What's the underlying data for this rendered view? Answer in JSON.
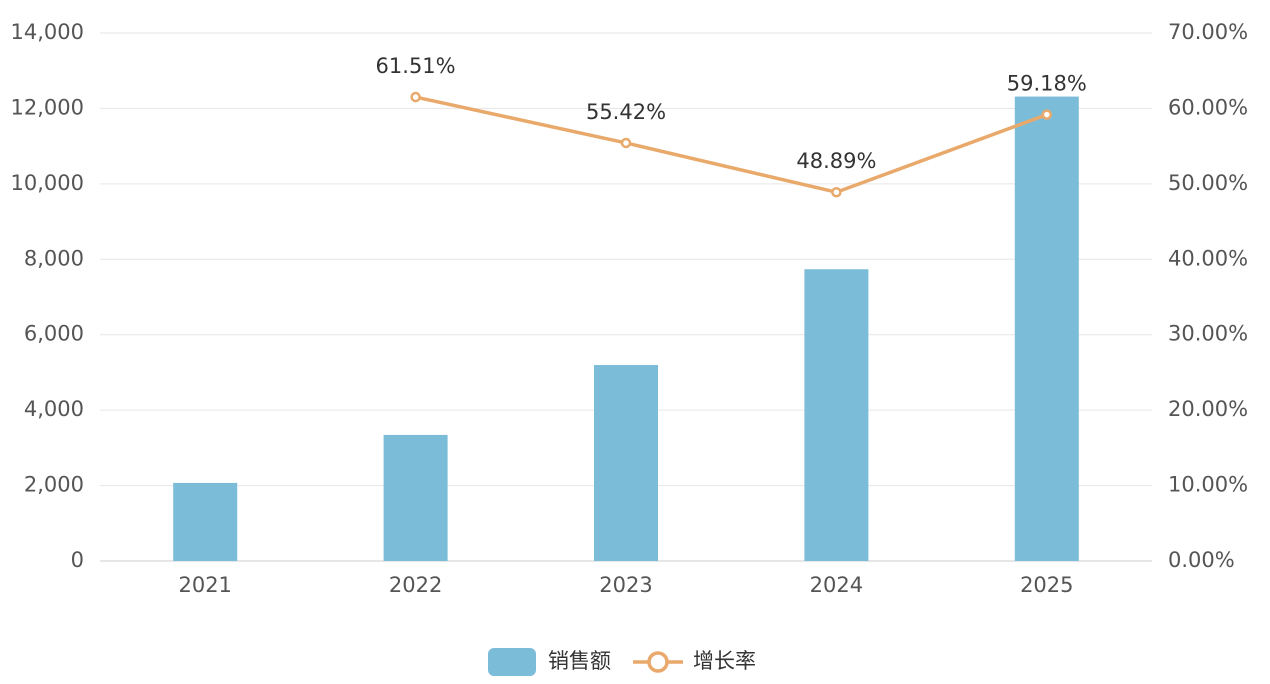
{
  "chart_data": {
    "type": "bar",
    "categories": [
      "2021",
      "2022",
      "2023",
      "2024",
      "2025"
    ],
    "series": [
      {
        "name": "销售额",
        "type": "bar",
        "color": "#7bbcd9",
        "values": [
          2070,
          3343,
          5196,
          7736,
          12314
        ]
      },
      {
        "name": "增长率",
        "type": "line",
        "axis": "y2",
        "color": "#e8a96b",
        "values": [
          null,
          61.51,
          55.42,
          48.89,
          59.18
        ],
        "value_labels": [
          null,
          "61.51%",
          "55.42%",
          "48.89%",
          "59.18%"
        ]
      }
    ],
    "ylim": [
      0,
      14000
    ],
    "yticks": [
      0,
      {
        "value": 2000,
        "label": "2,000"
      },
      {
        "value": 4000,
        "label": "4,000"
      },
      {
        "value": 6000,
        "label": "6,000"
      },
      {
        "value": 8000,
        "label": "8,000"
      },
      {
        "value": 10000,
        "label": "10,000"
      },
      {
        "value": 12000,
        "label": "12,000"
      },
      {
        "value": 14000,
        "label": "14,000"
      }
    ],
    "y2lim": [
      0,
      70
    ],
    "y2ticks": [
      {
        "value": 0,
        "label": "0.00%"
      },
      {
        "value": 10,
        "label": "10.00%"
      },
      {
        "value": 20,
        "label": "20.00%"
      },
      {
        "value": 30,
        "label": "30.00%"
      },
      {
        "value": 40,
        "label": "40.00%"
      },
      {
        "value": 50,
        "label": "50.00%"
      },
      {
        "value": 60,
        "label": "60.00%"
      },
      {
        "value": 70,
        "label": "70.00%"
      }
    ],
    "grid": true,
    "legend": "bottom"
  }
}
